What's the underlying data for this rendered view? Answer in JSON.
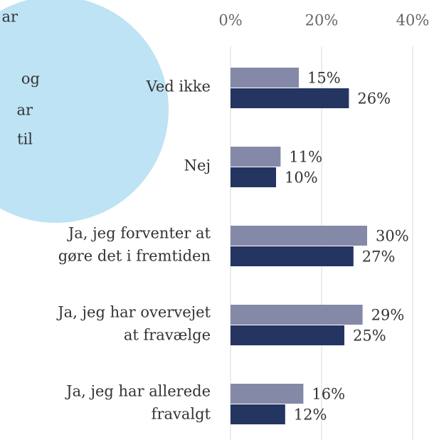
{
  "annotations": [
    "ar",
    "og",
    "ar",
    "til"
  ],
  "chart_data": {
    "type": "hbar",
    "categories": [
      [
        "Ved ikke"
      ],
      [
        "Nej"
      ],
      [
        "Ja, jeg forventer at",
        "gøre det i fremtiden"
      ],
      [
        "Ja, jeg har overvejet",
        "at fravælge"
      ],
      [
        "Ja, jeg har allerede",
        "fravalgt"
      ]
    ],
    "series": [
      {
        "color": "#8589a8",
        "values": [
          15,
          11,
          30,
          29,
          16
        ],
        "value_labels": [
          "15%",
          "11%",
          "30%",
          "29%",
          "16%"
        ]
      },
      {
        "color": "#253561",
        "values": [
          26,
          10,
          27,
          25,
          12
        ],
        "value_labels": [
          "26%",
          "10%",
          "27%",
          "25%",
          "12%"
        ]
      }
    ],
    "xlim": [
      0,
      40
    ],
    "xticks": [
      {
        "value": 0,
        "label": "0%"
      },
      {
        "value": 20,
        "label": "20%"
      },
      {
        "value": 40,
        "label": "40%"
      }
    ],
    "grid": true
  }
}
